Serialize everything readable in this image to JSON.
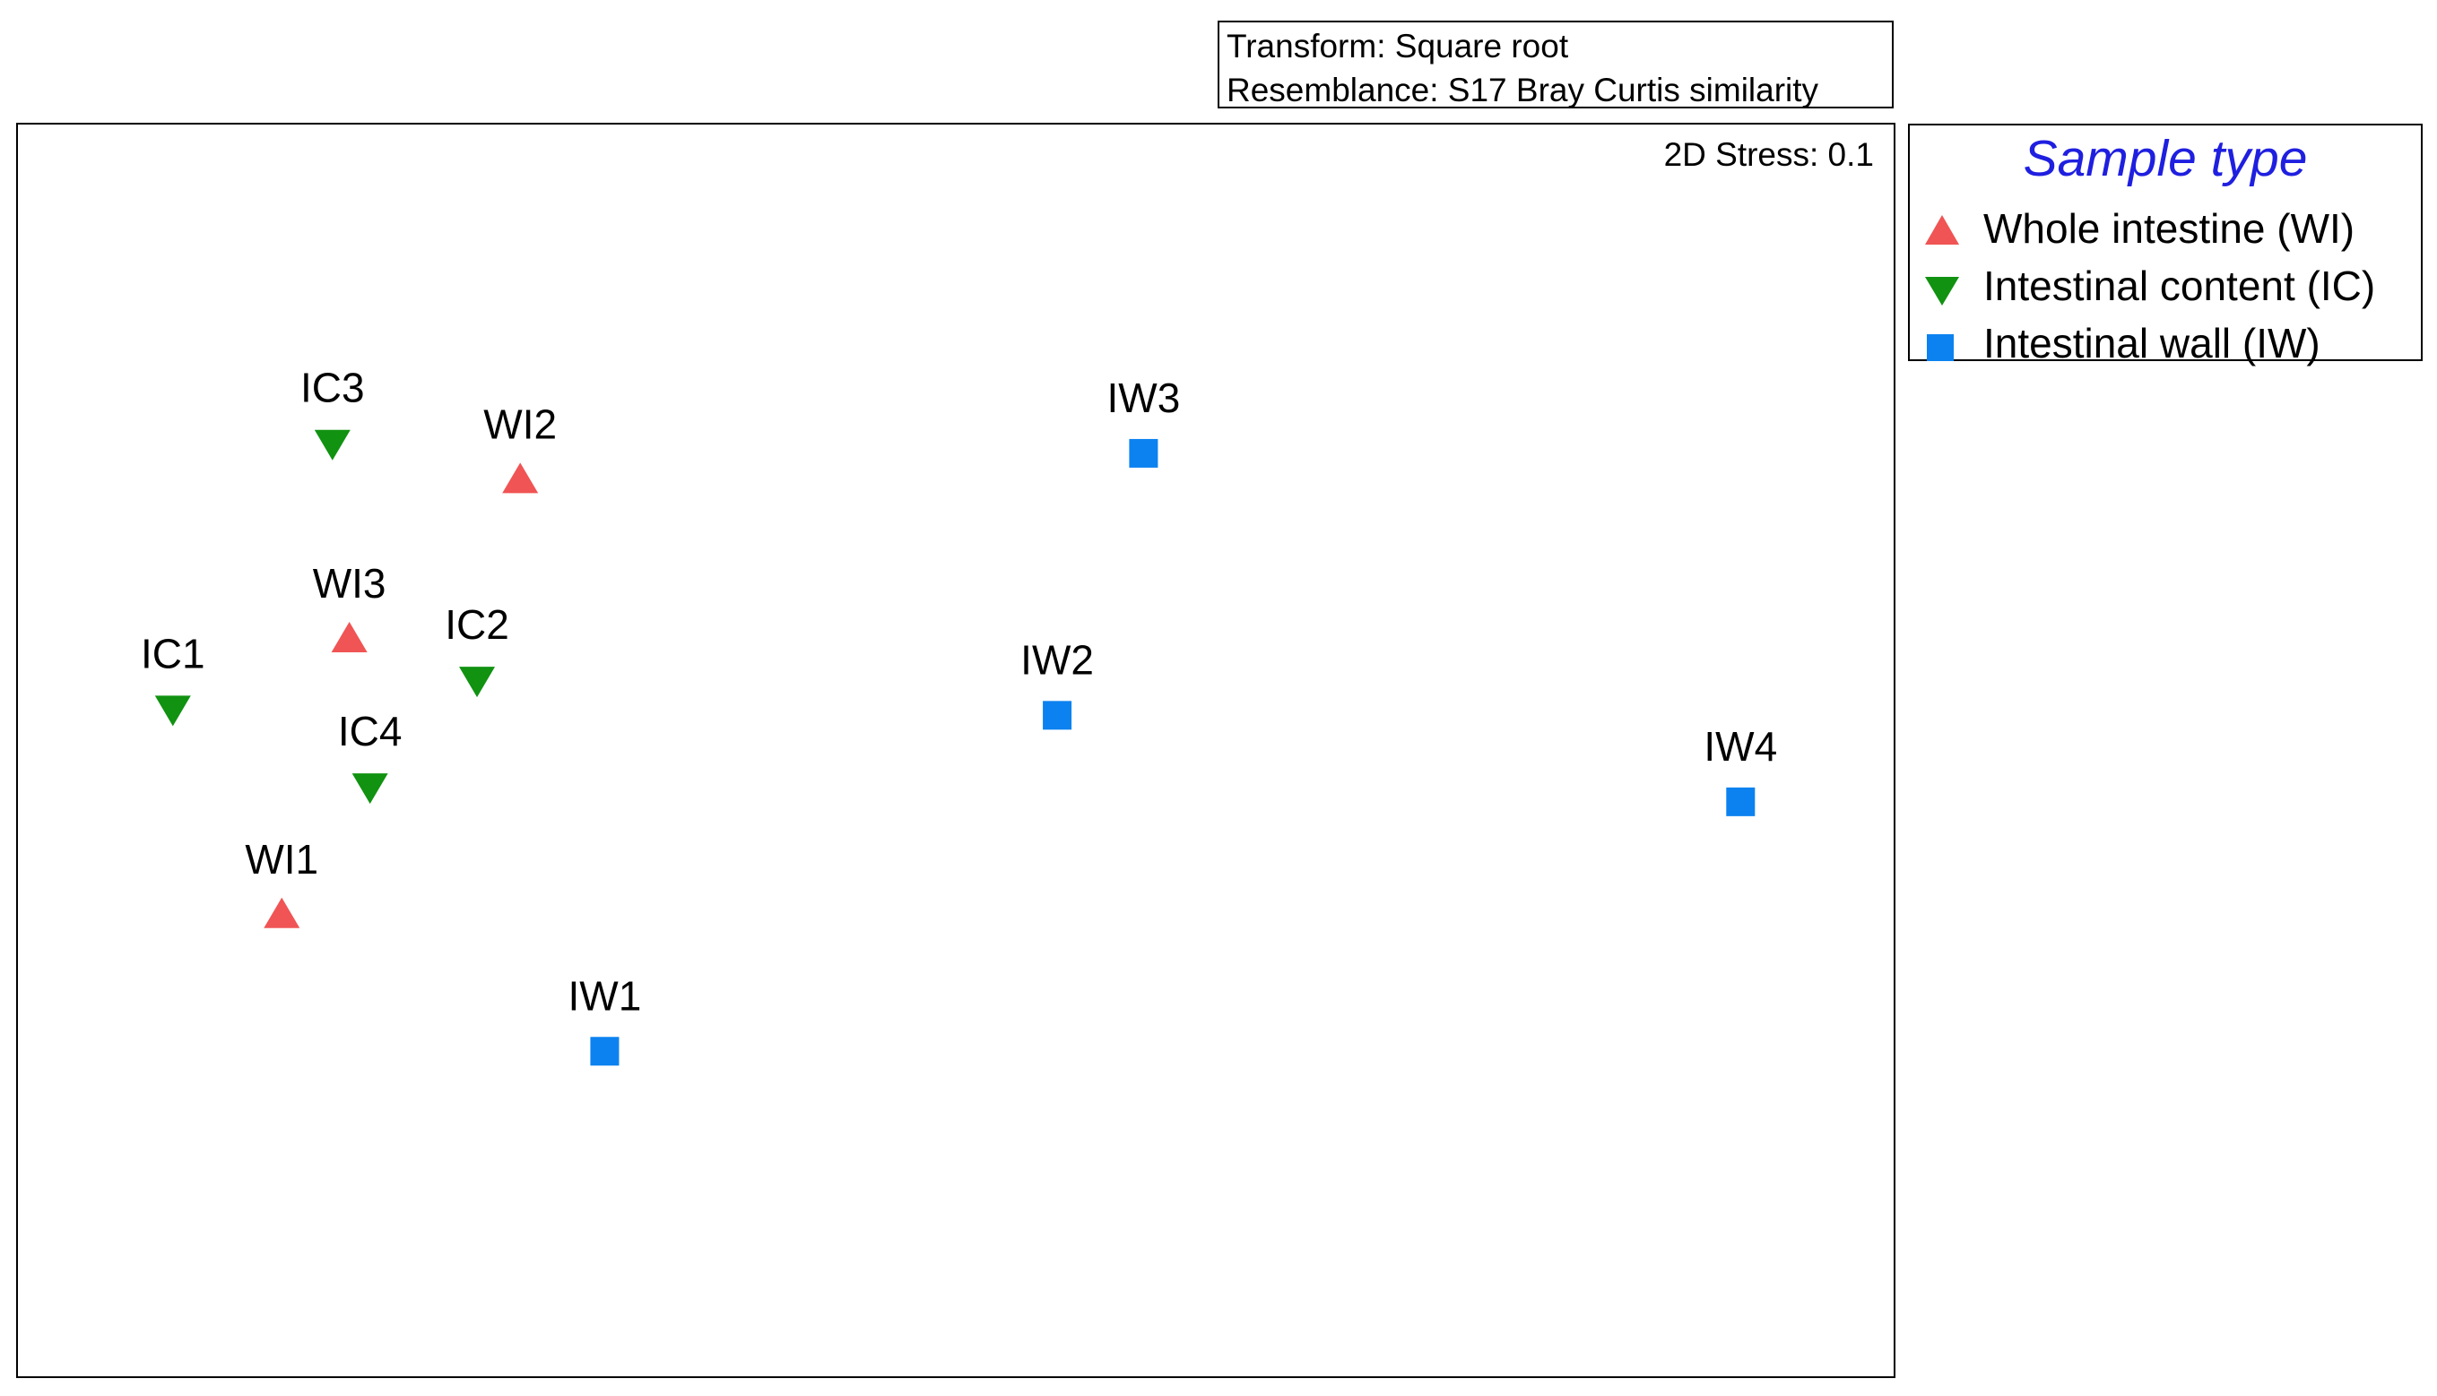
{
  "annotations": {
    "transform": "Transform: Square root",
    "resemblance": "Resemblance: S17 Bray Curtis similarity",
    "stress": "2D Stress: 0.1"
  },
  "legend": {
    "title": "Sample type",
    "items": [
      {
        "label": "Whole intestine (WI)",
        "marker": "triangle-up",
        "color": "#f05454"
      },
      {
        "label": "Intestinal content (IC)",
        "marker": "triangle-down",
        "color": "#119211"
      },
      {
        "label": "Intestinal wall (IW)",
        "marker": "square",
        "color": "#0c82f0"
      }
    ]
  },
  "chart_data": {
    "type": "scatter",
    "title": "",
    "xlabel": "",
    "ylabel": "",
    "grid": false,
    "legend_position": "right",
    "xlim": [
      0,
      100
    ],
    "ylim": [
      0,
      100
    ],
    "series": [
      {
        "name": "Whole intestine (WI)",
        "marker": "triangle-up",
        "color": "#f05454",
        "points": [
          {
            "label": "WI1",
            "x": 14.1,
            "y": 36.9
          },
          {
            "label": "WI2",
            "x": 26.8,
            "y": 71.6
          },
          {
            "label": "WI3",
            "x": 17.7,
            "y": 58.9
          }
        ]
      },
      {
        "name": "Intestinal content (IC)",
        "marker": "triangle-down",
        "color": "#119211",
        "points": [
          {
            "label": "IC1",
            "x": 8.3,
            "y": 53.3
          },
          {
            "label": "IC2",
            "x": 24.5,
            "y": 55.6
          },
          {
            "label": "IC3",
            "x": 16.8,
            "y": 74.5
          },
          {
            "label": "IC4",
            "x": 18.8,
            "y": 47.1
          }
        ]
      },
      {
        "name": "Intestinal wall (IW)",
        "marker": "square",
        "color": "#0c82f0",
        "points": [
          {
            "label": "IW1",
            "x": 31.3,
            "y": 26.0
          },
          {
            "label": "IW2",
            "x": 55.4,
            "y": 52.8
          },
          {
            "label": "IW3",
            "x": 60.0,
            "y": 73.7
          },
          {
            "label": "IW4",
            "x": 91.8,
            "y": 45.9
          }
        ]
      }
    ]
  }
}
